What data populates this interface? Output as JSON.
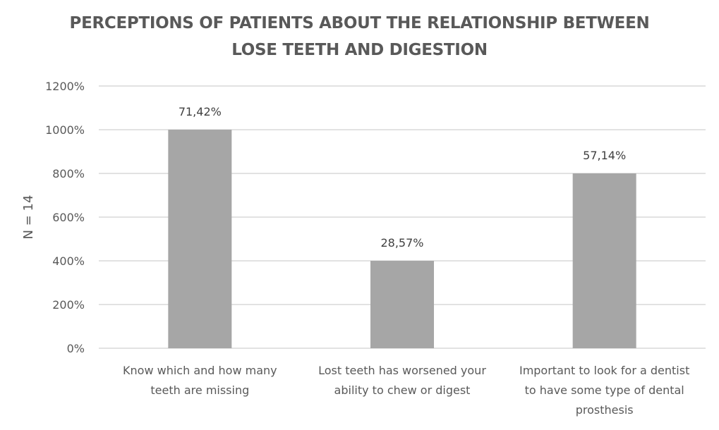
{
  "chart_data": {
    "type": "bar",
    "title_lines": [
      "PERCEPTIONS OF PATIENTS ABOUT THE RELATIONSHIP BETWEEN",
      "LOSE TEETH AND DIGESTION"
    ],
    "ylabel": "N = 14",
    "xlabel": "",
    "ylim": [
      0,
      1200
    ],
    "yticks": [
      0,
      200,
      400,
      600,
      800,
      1000,
      1200
    ],
    "ytick_labels": [
      "0%",
      "200%",
      "400%",
      "600%",
      "800%",
      "1000%",
      "1200%"
    ],
    "categories": [
      [
        "Know which and how many",
        "teeth are missing"
      ],
      [
        "Lost teeth has worsened your",
        "ability to chew or digest"
      ],
      [
        "Important to look for a dentist",
        "to have some type of dental",
        "prosthesis"
      ]
    ],
    "values": [
      1000,
      400,
      800
    ],
    "data_labels": [
      "71,42%",
      "28,57%",
      "57,14%"
    ],
    "grid": true,
    "legend": "none",
    "bar_color": "#a6a6a6",
    "grid_color": "#d9d9d9"
  }
}
